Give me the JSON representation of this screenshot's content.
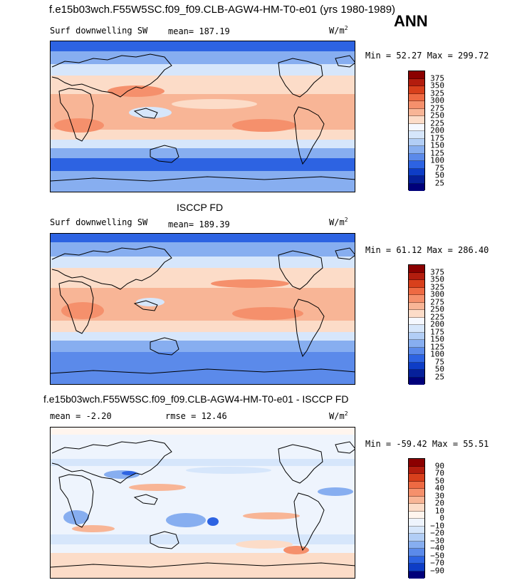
{
  "header": {
    "title": "f.e15b03wch.F55W5SC.f09_f09.CLB-AGW4-HM-T0-e01 (yrs 1980-1989)",
    "season": "ANN"
  },
  "panels": [
    {
      "id": "model",
      "title": "",
      "variable": "Surf downwelling SW",
      "mean_text": "mean= 187.19",
      "units": "W/m",
      "units_exp": "2",
      "minmax": "Min =  52.27 Max = 299.72",
      "levels": [
        "375",
        "350",
        "325",
        "300",
        "275",
        "250",
        "225",
        "200",
        "175",
        "150",
        "125",
        "100",
        "75",
        "50",
        "25"
      ],
      "colors": [
        "#8b0000",
        "#b31d0e",
        "#d8401c",
        "#ee6a43",
        "#f5906c",
        "#f8b596",
        "#fcdcc8",
        "#f5f8ff",
        "#d6e6fb",
        "#b2cef6",
        "#87aef0",
        "#5b8aea",
        "#2d63e2",
        "#0e3dc6",
        "#06209a",
        "#00007a"
      ]
    },
    {
      "id": "obs",
      "title": "ISCCP FD",
      "variable": "Surf downwelling SW",
      "mean_text": "mean= 189.39",
      "units": "W/m",
      "units_exp": "2",
      "minmax": "Min =  61.12 Max = 286.40",
      "levels": [
        "375",
        "350",
        "325",
        "300",
        "275",
        "250",
        "225",
        "200",
        "175",
        "150",
        "125",
        "100",
        "75",
        "50",
        "25"
      ],
      "colors": [
        "#8b0000",
        "#b31d0e",
        "#d8401c",
        "#ee6a43",
        "#f5906c",
        "#f8b596",
        "#fcdcc8",
        "#f5f8ff",
        "#d6e6fb",
        "#b2cef6",
        "#87aef0",
        "#5b8aea",
        "#2d63e2",
        "#0e3dc6",
        "#06209a",
        "#00007a"
      ]
    },
    {
      "id": "diff",
      "title": "f.e15b03wch.F55W5SC.f09_f09.CLB-AGW4-HM-T0-e01 - ISCCP FD",
      "variable": "",
      "mean_text": "mean =  -2.20",
      "rmse_text": "rmse =  12.46",
      "units": "W/m",
      "units_exp": "2",
      "minmax": "Min = -59.42 Max =  55.51",
      "levels": [
        "90",
        "70",
        "50",
        "40",
        "30",
        "20",
        "10",
        "0",
        "−10",
        "−20",
        "−30",
        "−40",
        "−50",
        "−70",
        "−90"
      ],
      "colors": [
        "#8b0000",
        "#b31d0e",
        "#d8401c",
        "#ee6a43",
        "#f5906c",
        "#f8b596",
        "#fcdcc8",
        "#fff5ee",
        "#eef4fd",
        "#d6e6fb",
        "#b2cef6",
        "#87aef0",
        "#5b8aea",
        "#2d63e2",
        "#0e3dc6",
        "#00007a"
      ]
    }
  ]
}
